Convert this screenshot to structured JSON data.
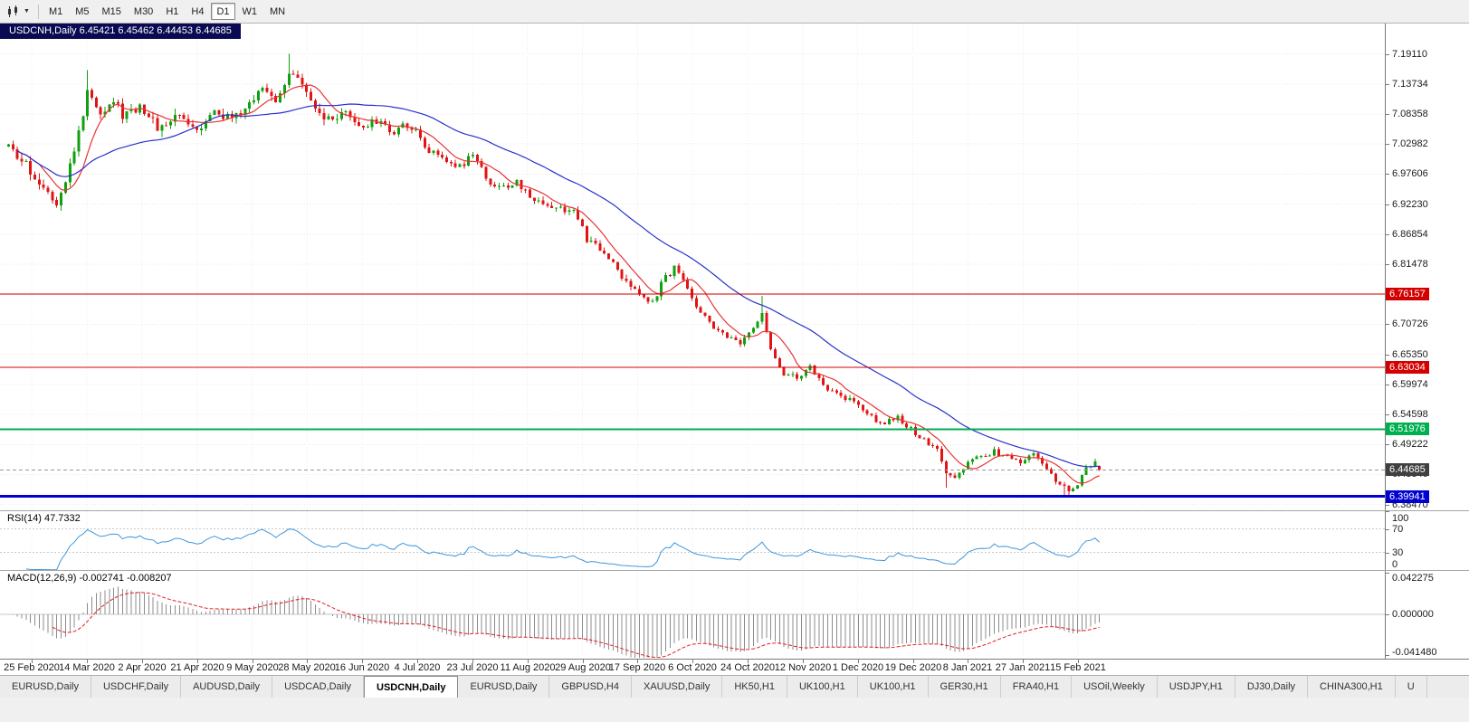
{
  "toolbar": {
    "timeframes": [
      "M1",
      "M5",
      "M15",
      "M30",
      "H1",
      "H4",
      "D1",
      "W1",
      "MN"
    ],
    "selected_timeframe": "D1"
  },
  "chart_header": {
    "title": "USDCNH,Daily 6.45421 6.45462 6.44453 6.44685"
  },
  "main_pane": {
    "price_min": 6.3745,
    "price_max": 7.2455,
    "grid_labels": [
      "7.19110",
      "7.13734",
      "7.08358",
      "7.02982",
      "6.97606",
      "6.92230",
      "6.86854",
      "6.81478",
      "6.76102",
      "6.70726",
      "6.65350",
      "6.59974",
      "6.54598",
      "6.49222",
      "6.43846",
      "6.38470"
    ]
  },
  "chart_data": {
    "type": "candlestick",
    "symbol": "USDCNH",
    "timeframe": "Daily",
    "up_color": "#0fa00f",
    "down_color": "#e01414",
    "x_dates": [
      "25 Feb 2020",
      "14 Mar 2020",
      "2 Apr 2020",
      "21 Apr 2020",
      "9 May 2020",
      "28 May 2020",
      "16 Jun 2020",
      "4 Jul 2020",
      "23 Jul 2020",
      "11 Aug 2020",
      "29 Aug 2020",
      "17 Sep 2020",
      "6 Oct 2020",
      "24 Oct 2020",
      "12 Nov 2020",
      "1 Dec 2020",
      "19 Dec 2020",
      "8 Jan 2021",
      "27 Jan 2021",
      "15 Feb 2021"
    ],
    "candles_count": 250,
    "price_path_anchors": [
      [
        0,
        7.02
      ],
      [
        4,
        6.99
      ],
      [
        8,
        6.955
      ],
      [
        11,
        6.93
      ],
      [
        14,
        6.99
      ],
      [
        16,
        7.05
      ],
      [
        18,
        7.12
      ],
      [
        21,
        7.09
      ],
      [
        24,
        7.11
      ],
      [
        26,
        7.08
      ],
      [
        30,
        7.1
      ],
      [
        34,
        7.06
      ],
      [
        39,
        7.08
      ],
      [
        43,
        7.06
      ],
      [
        47,
        7.09
      ],
      [
        51,
        7.07
      ],
      [
        55,
        7.1
      ],
      [
        58,
        7.13
      ],
      [
        61,
        7.11
      ],
      [
        64,
        7.16
      ],
      [
        67,
        7.13
      ],
      [
        70,
        7.09
      ],
      [
        73,
        7.07
      ],
      [
        77,
        7.08
      ],
      [
        80,
        7.06
      ],
      [
        84,
        7.07
      ],
      [
        88,
        7.05
      ],
      [
        90,
        7.07
      ],
      [
        93,
        7.05
      ],
      [
        96,
        7.02
      ],
      [
        100,
        7.0
      ],
      [
        103,
        6.99
      ],
      [
        106,
        7.01
      ],
      [
        109,
        6.97
      ],
      [
        112,
        6.95
      ],
      [
        116,
        6.96
      ],
      [
        120,
        6.93
      ],
      [
        124,
        6.92
      ],
      [
        129,
        6.91
      ],
      [
        132,
        6.86
      ],
      [
        135,
        6.84
      ],
      [
        138,
        6.82
      ],
      [
        141,
        6.78
      ],
      [
        144,
        6.76
      ],
      [
        147,
        6.75
      ],
      [
        150,
        6.79
      ],
      [
        152,
        6.81
      ],
      [
        154,
        6.79
      ],
      [
        157,
        6.74
      ],
      [
        160,
        6.71
      ],
      [
        163,
        6.69
      ],
      [
        167,
        6.67
      ],
      [
        170,
        6.7
      ],
      [
        172,
        6.73
      ],
      [
        174,
        6.66
      ],
      [
        177,
        6.62
      ],
      [
        180,
        6.61
      ],
      [
        183,
        6.63
      ],
      [
        186,
        6.6
      ],
      [
        189,
        6.58
      ],
      [
        193,
        6.57
      ],
      [
        196,
        6.55
      ],
      [
        199,
        6.53
      ],
      [
        203,
        6.54
      ],
      [
        206,
        6.52
      ],
      [
        209,
        6.5
      ],
      [
        212,
        6.48
      ],
      [
        214,
        6.44
      ],
      [
        216,
        6.43
      ],
      [
        219,
        6.46
      ],
      [
        222,
        6.47
      ],
      [
        225,
        6.48
      ],
      [
        228,
        6.47
      ],
      [
        231,
        6.46
      ],
      [
        234,
        6.48
      ],
      [
        236,
        6.46
      ],
      [
        238,
        6.44
      ],
      [
        240,
        6.42
      ],
      [
        242,
        6.41
      ],
      [
        244,
        6.42
      ],
      [
        246,
        6.45
      ],
      [
        248,
        6.46
      ],
      [
        249,
        6.447
      ]
    ],
    "spikes": [
      {
        "i": 11,
        "low": 6.92
      },
      {
        "i": 18,
        "high": 7.162
      },
      {
        "i": 64,
        "high": 7.191
      },
      {
        "i": 172,
        "high": 6.758
      },
      {
        "i": 214,
        "low": 6.415
      },
      {
        "i": 241,
        "low": 6.4
      },
      {
        "i": 242,
        "low": 6.398
      }
    ],
    "current_bar": {
      "open": 6.45421,
      "high": 6.45462,
      "low": 6.44453,
      "close": 6.44685
    },
    "hlines": [
      {
        "price": 6.76157,
        "label": "6.76157",
        "color": "#d40000",
        "width": 1
      },
      {
        "price": 6.63034,
        "label": "6.63034",
        "color": "#d40000",
        "width": 1
      },
      {
        "price": 6.51976,
        "label": "6.51976",
        "color": "#00b050",
        "width": 2
      },
      {
        "price": 6.39941,
        "label": "6.39941",
        "color": "#0000d0",
        "width": 3
      }
    ],
    "current_price_label": {
      "text": "6.44685",
      "bg": "#404040"
    },
    "moving_averages": [
      {
        "period": 8,
        "color": "#e83535"
      },
      {
        "period": 34,
        "color": "#2833cc"
      }
    ]
  },
  "rsi_pane": {
    "label": "RSI(14) 47.7332",
    "period": 14,
    "value": "47.7332",
    "line_color": "#3d96dc",
    "levels": [
      70,
      30
    ],
    "axis_labels": [
      {
        "text": "100",
        "value": 100
      },
      {
        "text": "70",
        "value": 70
      },
      {
        "text": "30",
        "value": 30
      },
      {
        "text": "0",
        "value": 0
      }
    ]
  },
  "macd_pane": {
    "label": "MACD(12,26,9) -0.002741 -0.008207",
    "range": 0.0445,
    "histogram_color": "#8c8c8c",
    "signal_color": "#e02020",
    "axis_labels": [
      {
        "text": "0.042275",
        "value": 0.042275
      },
      {
        "text": "0.000000",
        "value": 0
      },
      {
        "text": "-0.041480",
        "value": -0.04148
      }
    ]
  },
  "tabs": {
    "items": [
      "EURUSD,Daily",
      "USDCHF,Daily",
      "AUDUSD,Daily",
      "USDCAD,Daily",
      "USDCNH,Daily",
      "EURUSD,Daily",
      "GBPUSD,H4",
      "XAUUSD,Daily",
      "HK50,H1",
      "UK100,H1",
      "UK100,H1",
      "GER30,H1",
      "FRA40,H1",
      "USOil,Weekly",
      "USDJPY,H1",
      "DJ30,Daily",
      "CHINA300,H1",
      "U"
    ],
    "active_index": 4
  }
}
